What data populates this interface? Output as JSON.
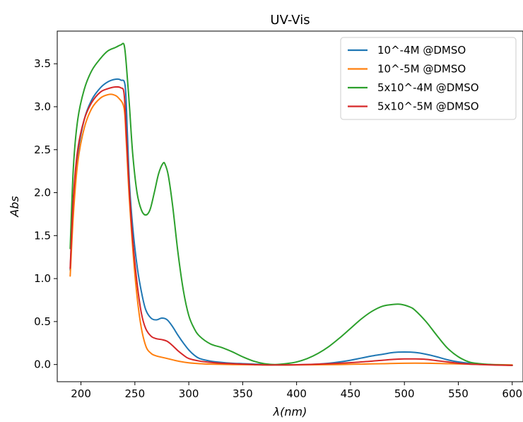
{
  "chart_data": {
    "type": "line",
    "title": "UV-Vis",
    "xlabel": "λ(nm)",
    "ylabel": "Abs",
    "xlim": [
      178,
      610
    ],
    "ylim": [
      -0.2,
      3.88
    ],
    "xticks": [
      200,
      250,
      300,
      350,
      400,
      450,
      500,
      550,
      600
    ],
    "xtick_labels": [
      "200",
      "250",
      "300",
      "350",
      "400",
      "450",
      "500",
      "550",
      "600"
    ],
    "yticks": [
      0.0,
      0.5,
      1.0,
      1.5,
      2.0,
      2.5,
      3.0,
      3.5
    ],
    "ytick_labels": [
      "0.0",
      "0.5",
      "1.0",
      "1.5",
      "2.0",
      "2.5",
      "3.0",
      "3.5"
    ],
    "grid": false,
    "legend_position": "top-right",
    "series": [
      {
        "name": "10^-4M @DMSO",
        "color": "#1f77b4",
        "x": [
          190,
          193,
          197,
          203,
          210,
          218,
          225,
          232,
          237,
          241,
          243,
          245,
          248,
          252,
          256,
          260,
          265,
          270,
          275,
          280,
          285,
          290,
          295,
          300,
          305,
          310,
          320,
          330,
          340,
          350,
          360,
          370,
          380,
          390,
          400,
          410,
          420,
          430,
          440,
          450,
          460,
          470,
          480,
          490,
          500,
          510,
          520,
          530,
          540,
          550,
          560,
          570,
          580,
          590,
          600
        ],
        "y": [
          1.1,
          1.9,
          2.45,
          2.85,
          3.08,
          3.22,
          3.29,
          3.32,
          3.31,
          3.24,
          2.7,
          2.1,
          1.6,
          1.15,
          0.85,
          0.64,
          0.54,
          0.52,
          0.54,
          0.52,
          0.44,
          0.34,
          0.25,
          0.17,
          0.11,
          0.07,
          0.04,
          0.025,
          0.015,
          0.01,
          0.005,
          0.0,
          -0.005,
          -0.005,
          -0.003,
          0.0,
          0.005,
          0.015,
          0.03,
          0.05,
          0.075,
          0.1,
          0.12,
          0.14,
          0.145,
          0.14,
          0.12,
          0.09,
          0.055,
          0.03,
          0.015,
          0.005,
          0.0,
          -0.005,
          -0.008
        ]
      },
      {
        "name": "10^-5M @DMSO",
        "color": "#ff7f0e",
        "x": [
          190,
          193,
          197,
          203,
          210,
          218,
          225,
          230,
          235,
          240,
          242,
          245,
          250,
          255,
          260,
          265,
          270,
          280,
          290,
          300,
          310,
          320,
          340,
          360,
          380,
          400,
          420,
          440,
          460,
          480,
          500,
          520,
          540,
          560,
          580,
          600
        ],
        "y": [
          1.03,
          1.75,
          2.35,
          2.75,
          2.98,
          3.1,
          3.14,
          3.14,
          3.1,
          2.98,
          2.6,
          1.9,
          1.05,
          0.5,
          0.22,
          0.13,
          0.1,
          0.07,
          0.04,
          0.02,
          0.01,
          0.005,
          0.0,
          -0.003,
          -0.005,
          -0.005,
          -0.003,
          0.0,
          0.005,
          0.01,
          0.015,
          0.015,
          0.01,
          0.005,
          0.0,
          -0.005
        ]
      },
      {
        "name": "5x10^-4M @DMSO",
        "color": "#2ca02c",
        "x": [
          190,
          193,
          197,
          203,
          210,
          218,
          225,
          232,
          237,
          240,
          242,
          245,
          248,
          252,
          256,
          260,
          264,
          268,
          272,
          276,
          278,
          281,
          285,
          290,
          295,
          300,
          305,
          310,
          320,
          330,
          340,
          345,
          350,
          360,
          370,
          380,
          390,
          400,
          410,
          420,
          430,
          440,
          450,
          460,
          470,
          480,
          490,
          497,
          505,
          510,
          520,
          530,
          540,
          550,
          560,
          570,
          580,
          590,
          600
        ],
        "y": [
          1.35,
          2.3,
          2.85,
          3.2,
          3.42,
          3.56,
          3.65,
          3.69,
          3.72,
          3.72,
          3.5,
          3.0,
          2.45,
          2.0,
          1.8,
          1.74,
          1.8,
          2.0,
          2.22,
          2.34,
          2.33,
          2.2,
          1.85,
          1.3,
          0.86,
          0.57,
          0.42,
          0.33,
          0.24,
          0.2,
          0.15,
          0.12,
          0.09,
          0.04,
          0.01,
          0.0,
          0.01,
          0.03,
          0.07,
          0.13,
          0.21,
          0.31,
          0.42,
          0.53,
          0.62,
          0.68,
          0.7,
          0.7,
          0.67,
          0.63,
          0.5,
          0.34,
          0.19,
          0.09,
          0.03,
          0.01,
          0.0,
          -0.005,
          -0.01
        ]
      },
      {
        "name": "5x10^-5M @DMSO",
        "color": "#d62728",
        "x": [
          190,
          193,
          197,
          203,
          210,
          218,
          225,
          232,
          237,
          240,
          242,
          245,
          248,
          252,
          256,
          260,
          265,
          270,
          275,
          280,
          285,
          290,
          295,
          300,
          310,
          320,
          330,
          340,
          350,
          360,
          370,
          380,
          390,
          400,
          420,
          440,
          460,
          480,
          490,
          500,
          510,
          520,
          530,
          540,
          550,
          560,
          570,
          580,
          590,
          600
        ],
        "y": [
          1.12,
          1.95,
          2.5,
          2.85,
          3.05,
          3.17,
          3.21,
          3.23,
          3.22,
          3.15,
          2.7,
          2.0,
          1.45,
          0.95,
          0.6,
          0.42,
          0.33,
          0.3,
          0.29,
          0.27,
          0.22,
          0.16,
          0.11,
          0.07,
          0.04,
          0.025,
          0.015,
          0.01,
          0.005,
          0.0,
          -0.005,
          -0.005,
          -0.005,
          -0.003,
          0.005,
          0.015,
          0.03,
          0.05,
          0.06,
          0.065,
          0.065,
          0.06,
          0.045,
          0.03,
          0.015,
          0.005,
          0.0,
          -0.005,
          -0.008,
          -0.01
        ]
      }
    ]
  }
}
